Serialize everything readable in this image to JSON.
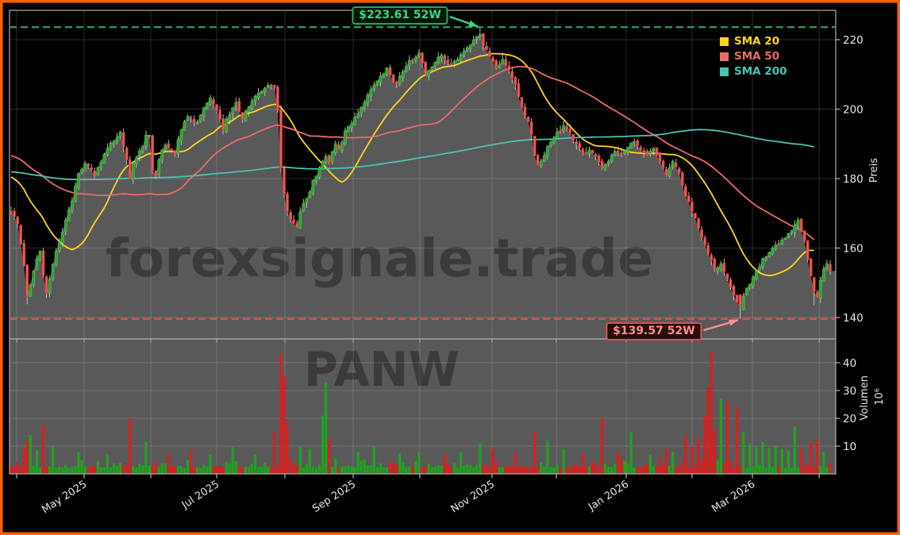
{
  "chart_data": {
    "type": "candlestick",
    "symbol": "PANW",
    "watermarks": [
      "forexsignale.trade",
      "PANW"
    ],
    "series": [
      {
        "label": "SMA 20",
        "window": 20,
        "color": "#FFD51E",
        "seed": 181
      },
      {
        "label": "SMA 50",
        "window": 50,
        "color": "#ED6A6A",
        "seed": 187
      },
      {
        "label": "SMA 200",
        "window": 200,
        "color": "#49C5B1",
        "seed": 182
      }
    ],
    "annotations": {
      "high": {
        "label": "$223.61 52W",
        "value": 223.61,
        "day": 146,
        "color": "#3FD67E",
        "line_color": "#2FA45B"
      },
      "low": {
        "label": "$139.57 52W",
        "value": 139.57,
        "day": 227,
        "color": "#FF8F8F",
        "line_color": "#DC5050"
      }
    },
    "price_axis": {
      "title": "Preis",
      "ticks": [
        140,
        160,
        180,
        200,
        220
      ],
      "range": [
        134.3,
        228.5
      ]
    },
    "volume_axis": {
      "title": "Volumen",
      "unit": "10⁶",
      "ticks": [
        10,
        20,
        30,
        40
      ],
      "range": [
        0,
        48.6
      ]
    },
    "x_axis": {
      "ticks": [
        {
          "f": 0.00865,
          "label": ""
        },
        {
          "f": 0.0903,
          "label": "May 2025"
        },
        {
          "f": 0.171,
          "label": ""
        },
        {
          "f": 0.2507,
          "label": "Jul 2025"
        },
        {
          "f": 0.3333,
          "label": ""
        },
        {
          "f": 0.416,
          "label": "Sep 2025"
        },
        {
          "f": 0.4966,
          "label": ""
        },
        {
          "f": 0.584,
          "label": "Nov 2025"
        },
        {
          "f": 0.6619,
          "label": ""
        },
        {
          "f": 0.7464,
          "label": "Jan 2026"
        },
        {
          "f": 0.826,
          "label": ""
        },
        {
          "f": 0.8992,
          "label": "Mar 2026"
        },
        {
          "f": 0.98,
          "label": ""
        }
      ]
    },
    "num_days": 256,
    "seed": 1337,
    "close_keyframes": [
      [
        0,
        171
      ],
      [
        2,
        167
      ],
      [
        4,
        155
      ],
      [
        5,
        146.5
      ],
      [
        6,
        149.5
      ],
      [
        7,
        153.5
      ],
      [
        9,
        159.5
      ],
      [
        10,
        152.5
      ],
      [
        11,
        147.5
      ],
      [
        12,
        151
      ],
      [
        14,
        158.5
      ],
      [
        16,
        165
      ],
      [
        19,
        174
      ],
      [
        21,
        181
      ],
      [
        23,
        184.5
      ],
      [
        26,
        181
      ],
      [
        28,
        184.5
      ],
      [
        30,
        188.5
      ],
      [
        32,
        191
      ],
      [
        34,
        193.5
      ],
      [
        36,
        185
      ],
      [
        37,
        179.5
      ],
      [
        38,
        184
      ],
      [
        40,
        187.5
      ],
      [
        42,
        192
      ],
      [
        43,
        193
      ],
      [
        44,
        182.5
      ],
      [
        45,
        180.5
      ],
      [
        46,
        185.5
      ],
      [
        48,
        190
      ],
      [
        51,
        187.5
      ],
      [
        53,
        194
      ],
      [
        55,
        198
      ],
      [
        58,
        196
      ],
      [
        60,
        200.5
      ],
      [
        62,
        203
      ],
      [
        64,
        199
      ],
      [
        66,
        194.5
      ],
      [
        68,
        198.5
      ],
      [
        70,
        202
      ],
      [
        72,
        197.5
      ],
      [
        74,
        200.5
      ],
      [
        77,
        204.5
      ],
      [
        79,
        205.5
      ],
      [
        81,
        207
      ],
      [
        82,
        206
      ],
      [
        83,
        200
      ],
      [
        84,
        183.5
      ],
      [
        85,
        176
      ],
      [
        86,
        170.5
      ],
      [
        87,
        168
      ],
      [
        89,
        166.5
      ],
      [
        90,
        170
      ],
      [
        92,
        174.5
      ],
      [
        94,
        179
      ],
      [
        96,
        183
      ],
      [
        98,
        186
      ],
      [
        99,
        185
      ],
      [
        101,
        189.5
      ],
      [
        102,
        188
      ],
      [
        104,
        193.5
      ],
      [
        107,
        197.5
      ],
      [
        110,
        201.5
      ],
      [
        112,
        205.5
      ],
      [
        115,
        209.5
      ],
      [
        117,
        211.5
      ],
      [
        119,
        208
      ],
      [
        120,
        207.5
      ],
      [
        122,
        211
      ],
      [
        124,
        213.5
      ],
      [
        127,
        216
      ],
      [
        129,
        210.5
      ],
      [
        131,
        212.5
      ],
      [
        134,
        215.5
      ],
      [
        137,
        212.5
      ],
      [
        139,
        214.5
      ],
      [
        142,
        217.5
      ],
      [
        144,
        219.5
      ],
      [
        146,
        221
      ],
      [
        147,
        218.5
      ],
      [
        149,
        215.5
      ],
      [
        151,
        211.5
      ],
      [
        153,
        214.5
      ],
      [
        155,
        211
      ],
      [
        157,
        206.5
      ],
      [
        159,
        201
      ],
      [
        161,
        196.5
      ],
      [
        162,
        193
      ],
      [
        163,
        187
      ],
      [
        164,
        184
      ],
      [
        166,
        187
      ],
      [
        168,
        190.5
      ],
      [
        170,
        193
      ],
      [
        172,
        195.5
      ],
      [
        174,
        193.5
      ],
      [
        176,
        189.5
      ],
      [
        178,
        187
      ],
      [
        180,
        188.5
      ],
      [
        182,
        186
      ],
      [
        184,
        183.5
      ],
      [
        186,
        185.5
      ],
      [
        188,
        188
      ],
      [
        190,
        186.5
      ],
      [
        192,
        189.5
      ],
      [
        194,
        191
      ],
      [
        196,
        188
      ],
      [
        198,
        186.5
      ],
      [
        200,
        188.5
      ],
      [
        202,
        184.5
      ],
      [
        204,
        181
      ],
      [
        206,
        184.5
      ],
      [
        208,
        181
      ],
      [
        209,
        177.5
      ],
      [
        211,
        173
      ],
      [
        213,
        169
      ],
      [
        215,
        163.5
      ],
      [
        217,
        158.5
      ],
      [
        219,
        153.5
      ],
      [
        221,
        156
      ],
      [
        223,
        151
      ],
      [
        225,
        146.5
      ],
      [
        227,
        142.8
      ],
      [
        228,
        146
      ],
      [
        230,
        150
      ],
      [
        232,
        153.5
      ],
      [
        234,
        156.5
      ],
      [
        236,
        159
      ],
      [
        238,
        161
      ],
      [
        240,
        162.5
      ],
      [
        242,
        164
      ],
      [
        244,
        166.5
      ],
      [
        245,
        168
      ],
      [
        247,
        162
      ],
      [
        248,
        157
      ],
      [
        249,
        151.5
      ],
      [
        250,
        147.5
      ],
      [
        251,
        146.5
      ],
      [
        252,
        150.5
      ],
      [
        253,
        153.5
      ],
      [
        254,
        155.5
      ],
      [
        255,
        153.5
      ]
    ],
    "volume_spikes": [
      [
        4,
        9
      ],
      [
        5,
        12
      ],
      [
        6,
        14
      ],
      [
        8,
        8.5
      ],
      [
        10,
        17.5
      ],
      [
        13,
        10
      ],
      [
        21,
        8
      ],
      [
        30,
        7
      ],
      [
        37,
        20
      ],
      [
        42,
        11.5
      ],
      [
        49,
        7.5
      ],
      [
        56,
        8.6
      ],
      [
        62,
        7
      ],
      [
        69,
        9.7
      ],
      [
        76,
        7
      ],
      [
        82,
        15
      ],
      [
        84,
        43
      ],
      [
        85,
        35
      ],
      [
        86,
        18
      ],
      [
        90,
        10
      ],
      [
        93,
        9
      ],
      [
        97,
        21
      ],
      [
        98,
        33
      ],
      [
        99,
        13
      ],
      [
        108,
        8
      ],
      [
        113,
        10
      ],
      [
        121,
        7.5
      ],
      [
        127,
        8
      ],
      [
        135,
        7
      ],
      [
        140,
        8
      ],
      [
        146,
        11
      ],
      [
        150,
        9
      ],
      [
        157,
        8
      ],
      [
        163,
        15
      ],
      [
        167,
        12
      ],
      [
        172,
        9
      ],
      [
        178,
        7.5
      ],
      [
        184,
        20
      ],
      [
        189,
        8
      ],
      [
        193,
        15
      ],
      [
        199,
        7
      ],
      [
        204,
        9
      ],
      [
        206,
        8
      ],
      [
        210,
        14
      ],
      [
        212,
        10
      ],
      [
        214,
        13
      ],
      [
        216,
        21
      ],
      [
        217,
        31
      ],
      [
        218,
        44
      ],
      [
        219,
        16
      ],
      [
        221,
        27
      ],
      [
        223,
        26
      ],
      [
        226,
        24
      ],
      [
        228,
        15
      ],
      [
        230,
        11
      ],
      [
        232,
        10
      ],
      [
        234,
        11.5
      ],
      [
        236,
        9.5
      ],
      [
        238,
        10
      ],
      [
        240,
        9
      ],
      [
        242,
        8.5
      ],
      [
        244,
        17
      ],
      [
        246,
        9
      ],
      [
        249,
        11.7
      ],
      [
        251,
        12.3
      ],
      [
        253,
        8
      ]
    ],
    "candle_overrides": {
      "5": {
        "low": 143.8
      },
      "146": {
        "high": 223.61
      },
      "227": {
        "low": 139.57,
        "open": 146.6,
        "close": 143.6
      },
      "250": {
        "low": 143.6
      }
    },
    "colors": {
      "background": "#000000",
      "panel_fill": "#595959",
      "frame": "#B9B9B9",
      "grid": "rgba(255,255,255,0.16)",
      "up": "#2EA12E",
      "up_edge": "#4CC44C",
      "down": "#EF5858",
      "down_edge": "#C93636",
      "wick": "#C9C9C9",
      "vol_up": "#1FA31F",
      "vol_down": "#DE1D1D",
      "tick_label": "#E6E6E6",
      "watermark": "rgba(0,0,0,0.33)",
      "border": "#FF6000"
    }
  }
}
